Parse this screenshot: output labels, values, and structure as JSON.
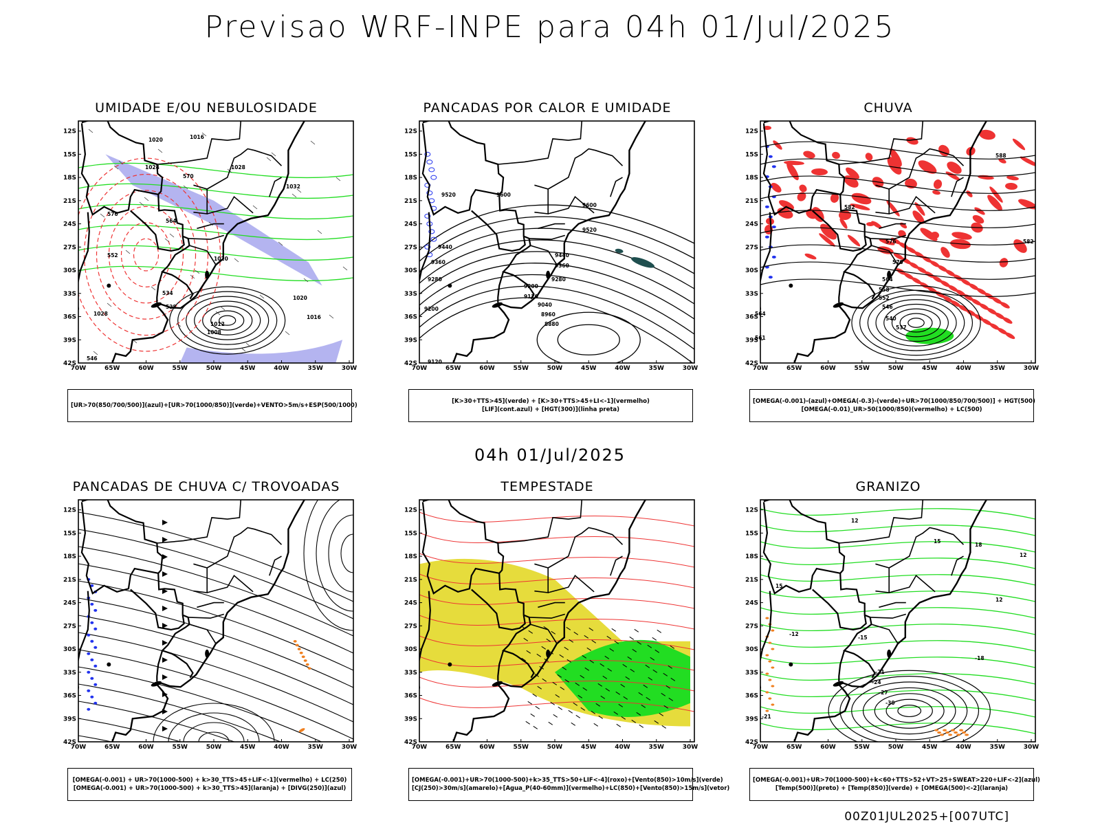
{
  "header": {
    "title": "Previsao WRF-INPE  para 04h 01/Jul/2025"
  },
  "mid_label": "04h 01/Jul/2025",
  "footer": "00Z01JUL2025+[007UTC]",
  "axes": {
    "lat_ticks": [
      "12S",
      "15S",
      "18S",
      "21S",
      "24S",
      "27S",
      "30S",
      "33S",
      "36S",
      "39S",
      "42S"
    ],
    "lon_ticks": [
      "70W",
      "65W",
      "60W",
      "55W",
      "50W",
      "45W",
      "40W",
      "35W",
      "30W"
    ]
  },
  "panels": [
    {
      "title": "UMIDADE E/OU NEBULOSIDADE",
      "legend1": "[UR>70(850/700/500)](azul)+[UR>70(1000/850)](verde)+VENTO>5m/s+ESP(500/1000)",
      "legend2": "",
      "labels": [
        "1020",
        "1016",
        "1024",
        "1028",
        "1032",
        "1020",
        "1012",
        "1008",
        "1016",
        "1020",
        "1028",
        "552",
        "564",
        "570",
        "576",
        "546",
        "534",
        "528"
      ]
    },
    {
      "title": "PANCADAS POR CALOR E UMIDADE",
      "legend1": "[K>30+TTS>45](verde) + [K>30+TTS>45+LI<-1](vermelho)",
      "legend2": "[LIF](cont.azul) + [HGT(300)](linha preta)",
      "labels": [
        "9520",
        "9600",
        "9600",
        "9520",
        "9440",
        "9360",
        "9280",
        "9200",
        "9120",
        "9040",
        "8960",
        "8880",
        "9200",
        "9280",
        "9120",
        "9440",
        "9360"
      ]
    },
    {
      "title": "CHUVA",
      "legend1": "[OMEGA(-0.001)-(azul)+OMEGA(-0.3)-(verde)+UR>70(1000/850/700/500)] + HGT(500)",
      "legend2": "[OMEGA(-0.01)_UR>50(1000/850)(vermelho) + LC(500)",
      "labels": [
        "588",
        "582",
        "576",
        "570",
        "564",
        "558",
        "552",
        "546",
        "540",
        "537",
        "561",
        "564",
        "582"
      ]
    },
    {
      "title": "PANCADAS DE CHUVA C/ TROVOADAS",
      "legend1": "[OMEGA(-0.001) + UR>70(1000-500) + k>30_TTS>45+LIF<-1](vermelho) + LC(250)",
      "legend2": "[OMEGA(-0.001) + UR>70(1000-500) + k>30_TTS>45](laranja) + [DIVG(250)](azul)",
      "labels": []
    },
    {
      "title": "TEMPESTADE",
      "legend1": "[OMEGA(-0.001)+UR>70(1000-500)+k>35_TTS>50+LIF<-4](roxo)+[Vento(850)>10m/s](verde)",
      "legend2": "[CJ(250)>30m/s](amarelo)+[Agua_P(40-60mm)](vermelho)+LC(850)+[Vento(850)>15m/s](vetor)",
      "labels": []
    },
    {
      "title": "GRANIZO",
      "legend1": "[OMEGA(-0.001)+UR>70(1000-500)+k<60+TTS>52+VT>25+SWEAT>220+LIF<-2](azul)",
      "legend2": "[Temp(500)](preto) + [Temp(850)](verde) + [OMEGA(500)<-2](laranja)",
      "labels": [
        "12",
        "15",
        "18",
        "12",
        "-12",
        "-15",
        "-21",
        "-24",
        "-27",
        "-30",
        "-18",
        "-21",
        "15",
        "12"
      ]
    }
  ],
  "colors": {
    "blue": "#2233ee",
    "green": "#22dd22",
    "red": "#ee3333",
    "yellow": "#e6dc3c",
    "lavender": "#b4b4f0",
    "orange": "#f08020",
    "darkteal": "#1f4f4f"
  }
}
